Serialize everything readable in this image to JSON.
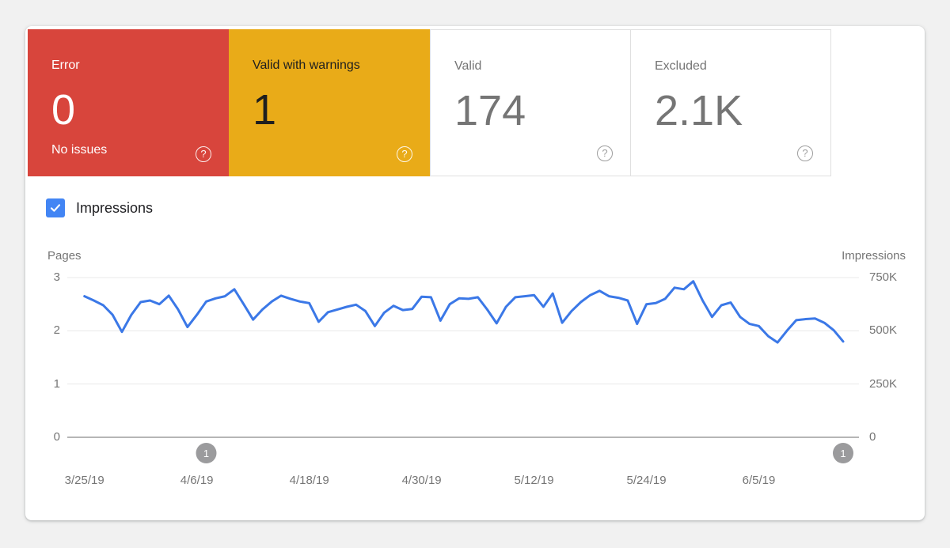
{
  "colors": {
    "page_bg": "#F1F1F1",
    "error_bg": "#D8453C",
    "warning_bg": "#E9AB18",
    "line": "#3B78E7",
    "checkbox": "#4285F4",
    "marker_bg": "#9B9B9D",
    "grid": "#E8E8E8",
    "axis": "#9E9E9E",
    "muted_text": "#757575",
    "dark_text": "#1F1F1F"
  },
  "icons": {
    "help": "?"
  },
  "summary_cards": [
    {
      "id": "error",
      "label": "Error",
      "value": "0",
      "subtitle": "No issues"
    },
    {
      "id": "valid-with-warnings",
      "label": "Valid with warnings",
      "value": "1"
    },
    {
      "id": "valid",
      "label": "Valid",
      "value": "174"
    },
    {
      "id": "excluded",
      "label": "Excluded",
      "value": "2.1K"
    }
  ],
  "impressions_toggle": {
    "label": "Impressions",
    "checked": true
  },
  "chart_data": {
    "type": "line",
    "title": "",
    "left_axis": {
      "label": "Pages",
      "ticks": [
        "3",
        "2",
        "1",
        "0"
      ],
      "range": [
        0,
        3
      ]
    },
    "right_axis": {
      "label": "Impressions",
      "ticks": [
        "750K",
        "500K",
        "250K",
        "0"
      ],
      "range": [
        0,
        750000
      ]
    },
    "grid": true,
    "x": {
      "start_date": "3/25/19",
      "tick_labels": [
        "3/25/19",
        "4/6/19",
        "4/18/19",
        "4/30/19",
        "5/12/19",
        "5/24/19",
        "6/5/19"
      ],
      "tick_every": 12,
      "points": 82
    },
    "series": [
      {
        "name": "Impressions",
        "axis": "right",
        "color": "#3B78E7",
        "values": [
          662500,
          642500,
          620000,
          575000,
          495000,
          575000,
          635000,
          642500,
          625000,
          665000,
          600000,
          517500,
          575000,
          637500,
          652500,
          662500,
          695000,
          625000,
          552500,
          600000,
          637500,
          665000,
          650000,
          637500,
          630000,
          542500,
          587500,
          600000,
          612500,
          622500,
          592500,
          522500,
          585000,
          617500,
          597500,
          602500,
          660000,
          657500,
          547500,
          625000,
          652500,
          650000,
          657500,
          600000,
          535000,
          612500,
          657500,
          662500,
          667500,
          612500,
          675000,
          537500,
          592500,
          635000,
          667500,
          687500,
          662500,
          655000,
          642500,
          532500,
          625000,
          630000,
          650000,
          702500,
          695000,
          732500,
          642500,
          565000,
          620000,
          632500,
          565000,
          532500,
          522500,
          475000,
          445000,
          500000,
          550000,
          555000,
          557500,
          537500,
          502500,
          450000
        ]
      }
    ],
    "markers": [
      {
        "label": "1",
        "x_index": 13
      },
      {
        "label": "1",
        "x_index": 81
      }
    ]
  }
}
